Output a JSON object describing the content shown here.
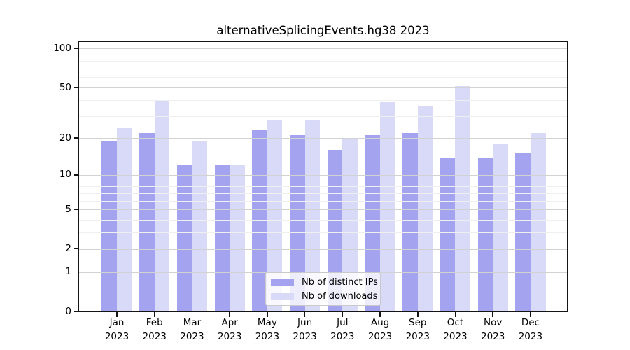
{
  "window": {
    "title": "alternativeSplicingEvents.hg38 2023"
  },
  "chart_data": {
    "type": "bar",
    "title": "alternativeSplicingEvents.hg38 2023",
    "categories": [
      "Jan 2023",
      "Feb 2023",
      "Mar 2023",
      "Apr 2023",
      "May 2023",
      "Jun 2023",
      "Jul 2023",
      "Aug 2023",
      "Sep 2023",
      "Oct 2023",
      "Nov 2023",
      "Dec 2023"
    ],
    "series": [
      {
        "name": "Nb of distinct IPs",
        "color": "#a3a3f0",
        "values": [
          19,
          22,
          12,
          12,
          23,
          21,
          16,
          21,
          22,
          14,
          14,
          15
        ]
      },
      {
        "name": "Nb of downloads",
        "color": "#d9d9f8",
        "values": [
          24,
          40,
          19,
          12,
          28,
          28,
          20,
          39,
          36,
          51,
          18,
          22
        ]
      }
    ],
    "xlabel": "",
    "ylabel": "",
    "yscale": "log1p",
    "ylim": [
      0,
      113
    ],
    "yticks": [
      0,
      1,
      2,
      5,
      10,
      20,
      50,
      100
    ],
    "minor_gridlines": [
      3,
      4,
      6,
      7,
      8,
      9,
      30,
      40,
      60,
      70,
      80,
      90
    ],
    "grid": "horizontal",
    "legend_position": "bottom-center",
    "colors": {
      "background": "#ffffff",
      "frame": "#141414",
      "major_grid": "#d2d2d2",
      "minor_grid": "#efefef",
      "text": "#000000"
    }
  }
}
